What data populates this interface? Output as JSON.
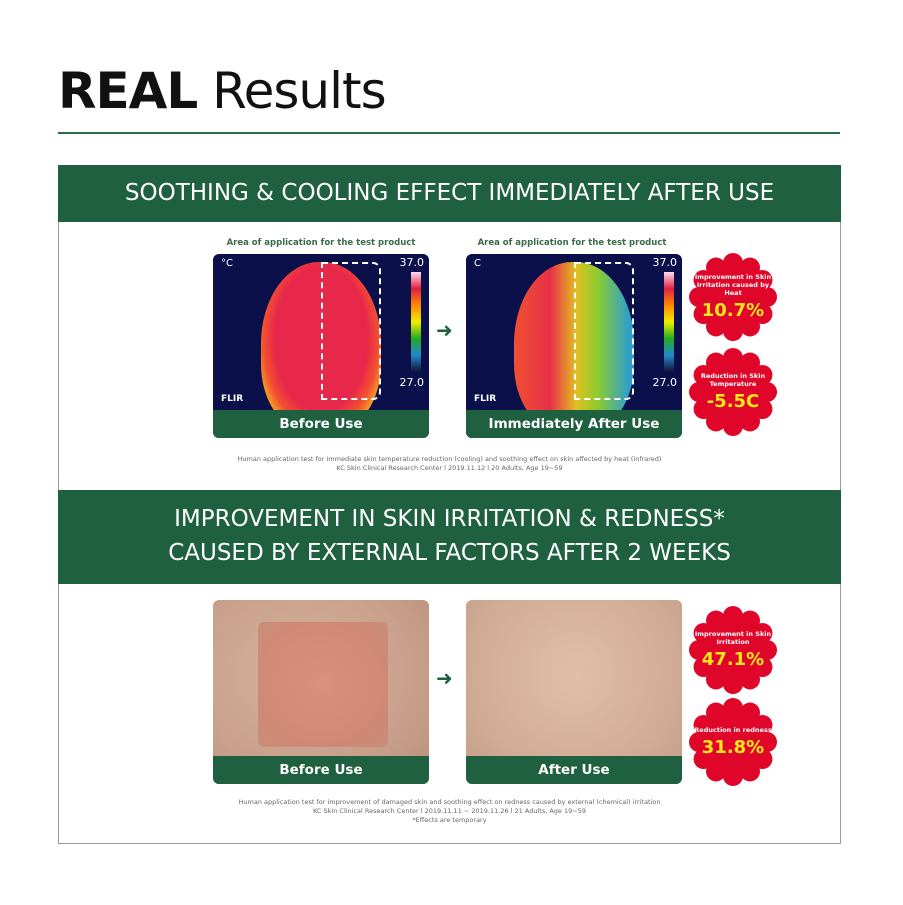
{
  "title": {
    "bold": "REAL",
    "rest": " Results"
  },
  "section1": {
    "heading": "SOOTHING & COOLING EFFECT IMMEDIATELY AFTER USE",
    "caption": "Area of application for the test product",
    "before": {
      "label": "Before Use",
      "unit": "°C",
      "max": "37.0",
      "min": "27.0",
      "brand": "FLIR"
    },
    "after": {
      "label": "Immediately After Use",
      "unit": "C",
      "max": "37.0",
      "min": "27.0",
      "brand": "FLIR"
    },
    "stats": [
      {
        "label": "Improvement in Skin Irritation caused by Heat",
        "value": "10.7%"
      },
      {
        "label": "Reduction in Skin Temperature",
        "value": "-5.5C"
      }
    ],
    "note1": "Human application test for immediate skin temperature reduction (cooling) and soothing effect on skin affected by heat (infrared)",
    "note2": "KC Skin Clinical Research Center l 2019.11.12 l 20 Adults, Age 19~59"
  },
  "section2": {
    "heading1": "IMPROVEMENT IN SKIN IRRITATION & REDNESS*",
    "heading2": "CAUSED BY EXTERNAL FACTORS AFTER 2 WEEKS",
    "before": {
      "label": "Before Use"
    },
    "after": {
      "label": "After Use"
    },
    "stats": [
      {
        "label": "Improvement in Skin Irritation",
        "value": "47.1%"
      },
      {
        "label": "Reduction in redness",
        "value": "31.8%"
      }
    ],
    "note1": "Human application test for improvement of damaged skin and soothing effect on redness caused by external (chemical) irritation",
    "note2": "KC Skin Clinical Research Center l 2019.11.11 ~ 2019.11.26 l 21 Adults, Age 19~59",
    "note3": "*Effects are temporary"
  },
  "colors": {
    "brand_green": "#1f6040",
    "badge_red": "#e0062a",
    "badge_value": "#ffe81a"
  }
}
